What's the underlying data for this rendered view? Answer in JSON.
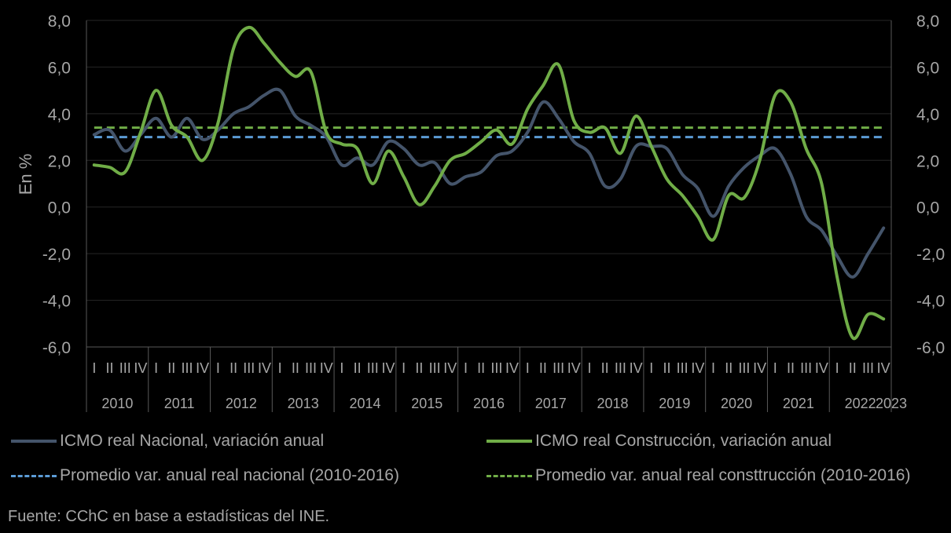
{
  "chart_data": {
    "type": "line",
    "ylabel": "En %",
    "ylim": [
      -6,
      8
    ],
    "yticks": [
      "-6,0",
      "-4,0",
      "-2,0",
      "0,0",
      "2,0",
      "4,0",
      "6,0",
      "8,0"
    ],
    "yticks_right": [
      "-6,0",
      "-4,0",
      "-2,0",
      "0,0",
      "2,0",
      "4,0",
      "6,0",
      "8,0"
    ],
    "years": [
      "2010",
      "2011",
      "2012",
      "2013",
      "2014",
      "2015",
      "2016",
      "2017",
      "2018",
      "2019",
      "2020",
      "2021",
      "2022",
      "2023"
    ],
    "quarters": [
      "I",
      "II",
      "III",
      "IV"
    ],
    "series": [
      {
        "name": "ICMO real Nacional, variación anual",
        "color": "#44546a",
        "style": "solid",
        "values": [
          3.1,
          3.3,
          2.4,
          3.1,
          3.8,
          3.0,
          3.8,
          2.9,
          3.3,
          4.0,
          4.3,
          4.8,
          5.0,
          3.9,
          3.5,
          3.0,
          1.8,
          2.1,
          1.8,
          2.8,
          2.5,
          1.8,
          1.9,
          1.0,
          1.3,
          1.5,
          2.2,
          2.4,
          3.2,
          4.5,
          3.8,
          2.8,
          2.3,
          0.9,
          1.2,
          2.6,
          2.6,
          2.5,
          1.4,
          0.8,
          -0.4,
          0.9,
          1.7,
          2.2,
          2.5,
          1.4,
          -0.4,
          -1.0,
          -2.1,
          -3.0,
          -2.0,
          -0.9
        ]
      },
      {
        "name": "ICMO real Construcción, variación anual",
        "color": "#70ad47",
        "style": "solid",
        "values": [
          1.8,
          1.7,
          1.5,
          3.2,
          5.0,
          3.5,
          3.0,
          2.0,
          3.6,
          6.8,
          7.7,
          7.0,
          6.2,
          5.6,
          5.8,
          3.2,
          2.7,
          2.5,
          1.0,
          2.4,
          1.3,
          0.1,
          0.9,
          2.0,
          2.3,
          2.8,
          3.3,
          2.7,
          4.2,
          5.2,
          6.1,
          3.7,
          3.2,
          3.4,
          2.3,
          3.9,
          2.6,
          1.2,
          0.5,
          -0.4,
          -1.4,
          0.5,
          0.4,
          2.0,
          4.8,
          4.5,
          2.5,
          1.0,
          -3.0,
          -5.6,
          -4.6,
          -4.8
        ]
      },
      {
        "name": "Promedio var. anual real nacional (2010-2016)",
        "color": "#5b9bd5",
        "style": "dashed",
        "constant": 3.0
      },
      {
        "name": "Promedio var. anual real consttrucción (2010-2016)",
        "color": "#70ad47",
        "style": "dashed",
        "constant": 3.4
      }
    ]
  },
  "legend": {
    "nacional": "ICMO real Nacional, variación anual",
    "construccion": "ICMO real Construcción, variación anual",
    "prom_nacional": "Promedio var. anual real nacional (2010-2016)",
    "prom_construccion": "Promedio var. anual real consttrucción (2010-2016)"
  },
  "source": "Fuente: CChC en base a estadísticas del INE."
}
